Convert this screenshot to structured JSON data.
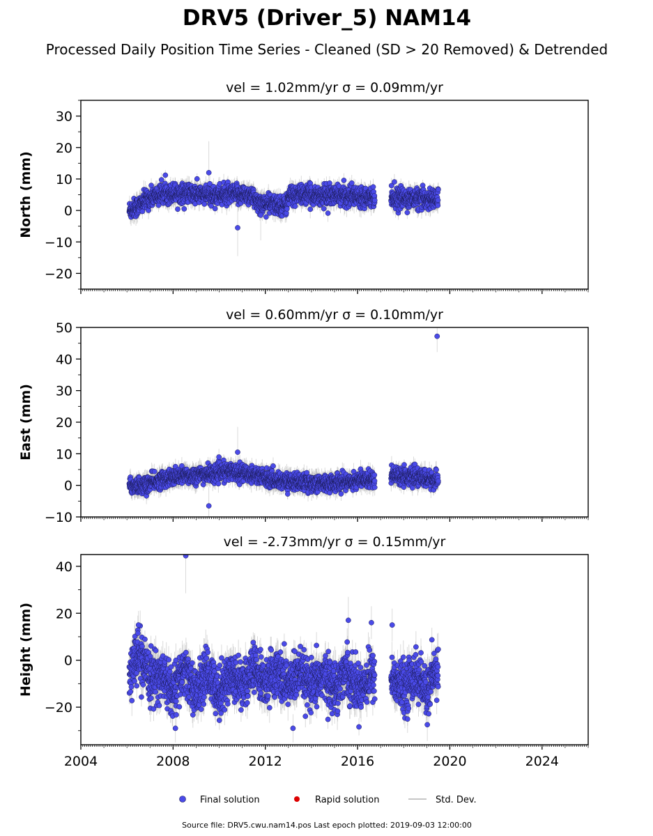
{
  "title": "DRV5 (Driver_5) NAM14",
  "subtitle": "Processed Daily Position Time Series - Cleaned (SD > 20 Removed) & Detrended",
  "legend": {
    "final_label": "Final solution",
    "rapid_label": "Rapid solution",
    "std_label": "Std. Dev."
  },
  "footer": "Source file: DRV5.cwu.nam14.pos  Last epoch plotted: 2019-09-03 12:00:00",
  "colors": {
    "final": "#4a4ae8",
    "rapid": "#dd0000",
    "std": "#b4b4b4",
    "marker_edge": "#1a1a55"
  },
  "chart_data": [
    {
      "type": "scatter",
      "panel": "north",
      "title": "vel = 1.02mm/yr   σ = 0.09mm/yr",
      "ylabel": "North (mm)",
      "xlim": [
        2004,
        2026
      ],
      "ylim": [
        -25,
        35
      ],
      "yticks": [
        -20,
        -10,
        0,
        10,
        20,
        30
      ],
      "ytick_labels": [
        "−20",
        "−10",
        "0",
        "10",
        "20",
        "30"
      ],
      "trend": [
        [
          2006.1,
          0
        ],
        [
          2006.5,
          1.5
        ],
        [
          2007.0,
          4
        ],
        [
          2007.6,
          5.5
        ],
        [
          2008.5,
          5.5
        ],
        [
          2009.5,
          4.8
        ],
        [
          2010.5,
          5
        ],
        [
          2011.4,
          5
        ],
        [
          2011.6,
          2.5
        ],
        [
          2012.9,
          1.5
        ],
        [
          2013.05,
          5
        ],
        [
          2016.7,
          4.5
        ],
        [
          2017.5,
          4
        ],
        [
          2019.5,
          3.5
        ]
      ],
      "scatter_sd": 1.5,
      "err_sd": 2.5,
      "outliers": [
        {
          "x": 2009.55,
          "y": 12,
          "err": 10
        },
        {
          "x": 2010.8,
          "y": -5.5,
          "err": 9
        },
        {
          "x": 2011.8,
          "y": -1.5,
          "err": 8
        }
      ]
    },
    {
      "type": "scatter",
      "panel": "east",
      "title": "vel = 0.60mm/yr   σ = 0.10mm/yr",
      "ylabel": "East (mm)",
      "xlim": [
        2004,
        2026
      ],
      "ylim": [
        -10,
        50
      ],
      "yticks": [
        -10,
        0,
        10,
        20,
        30,
        40,
        50
      ],
      "ytick_labels": [
        "−10",
        "0",
        "10",
        "20",
        "30",
        "40",
        "50"
      ],
      "trend": [
        [
          2006.1,
          0
        ],
        [
          2006.8,
          0
        ],
        [
          2007.5,
          2
        ],
        [
          2008.5,
          3
        ],
        [
          2009.5,
          3.5
        ],
        [
          2010.5,
          4.5
        ],
        [
          2011.5,
          3.5
        ],
        [
          2012.5,
          1.5
        ],
        [
          2014.5,
          0.5
        ],
        [
          2016.7,
          2
        ],
        [
          2017.5,
          3.5
        ],
        [
          2019.5,
          1.5
        ]
      ],
      "scatter_sd": 1.3,
      "err_sd": 2.5,
      "outliers": [
        {
          "x": 2009.55,
          "y": -6.5,
          "err": 6
        },
        {
          "x": 2010.8,
          "y": 10.5,
          "err": 8
        },
        {
          "x": 2019.45,
          "y": 47.2,
          "err": 5
        }
      ]
    },
    {
      "type": "scatter",
      "panel": "height",
      "title": "vel = -2.73mm/yr   σ = 0.15mm/yr",
      "ylabel": "Height (mm)",
      "xlim": [
        2004,
        2026
      ],
      "ylim": [
        -36,
        45
      ],
      "yticks": [
        -20,
        0,
        20,
        40
      ],
      "ytick_labels": [
        "−20",
        "0",
        "20",
        "40"
      ],
      "xticks": [
        2004,
        2008,
        2012,
        2016,
        2020,
        2024
      ],
      "xtick_labels": [
        "2004",
        "2008",
        "2012",
        "2016",
        "2020",
        "2024"
      ],
      "trend": [
        [
          2006.1,
          -5
        ],
        [
          2006.5,
          2
        ],
        [
          2007.0,
          -8
        ],
        [
          2007.5,
          -6
        ],
        [
          2008.0,
          -14
        ],
        [
          2008.5,
          -4
        ],
        [
          2009.0,
          -14
        ],
        [
          2009.5,
          -5
        ],
        [
          2010.0,
          -14
        ],
        [
          2010.5,
          -6
        ],
        [
          2011.0,
          -10
        ],
        [
          2011.5,
          -4
        ],
        [
          2012.0,
          -10
        ],
        [
          2012.5,
          -5
        ],
        [
          2013.0,
          -10
        ],
        [
          2013.5,
          -6
        ],
        [
          2014.0,
          -12
        ],
        [
          2014.5,
          -6
        ],
        [
          2015.0,
          -12
        ],
        [
          2015.5,
          -4
        ],
        [
          2016.0,
          -12
        ],
        [
          2016.7,
          -6
        ],
        [
          2017.5,
          -8
        ],
        [
          2018.0,
          -12
        ],
        [
          2018.5,
          -6
        ],
        [
          2019.0,
          -14
        ],
        [
          2019.5,
          -3
        ]
      ],
      "scatter_sd": 5,
      "err_sd": 6,
      "outliers": [
        {
          "x": 2008.55,
          "y": 44.5,
          "err": 16
        },
        {
          "x": 2006.5,
          "y": 15,
          "err": 6
        },
        {
          "x": 2015.6,
          "y": 17,
          "err": 10
        },
        {
          "x": 2013.2,
          "y": -29,
          "err": 6
        },
        {
          "x": 2008.1,
          "y": -29,
          "err": 6
        },
        {
          "x": 2016.6,
          "y": 16,
          "err": 7
        },
        {
          "x": 2017.5,
          "y": 15,
          "err": 7
        }
      ]
    }
  ]
}
